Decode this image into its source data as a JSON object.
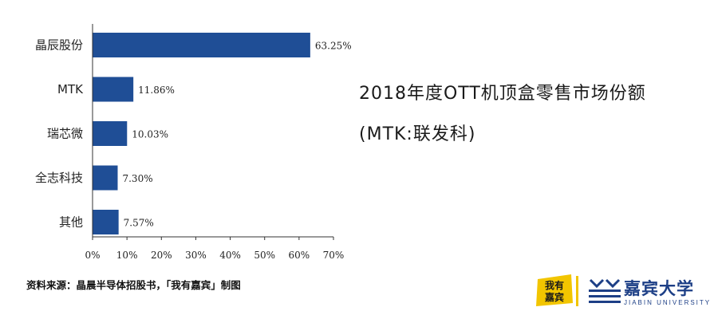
{
  "chart_data": {
    "type": "bar",
    "orientation": "horizontal",
    "title": "2018年度OTT机顶盒零售市场份额",
    "subtitle": "(MTK:联发科)",
    "categories": [
      "晶辰股份",
      "MTK",
      "瑞芯微",
      "全志科技",
      "其他"
    ],
    "values": [
      63.25,
      11.86,
      10.03,
      7.3,
      7.57
    ],
    "value_labels": [
      "63.25%",
      "11.86%",
      "10.03%",
      "7.30%",
      "7.57%"
    ],
    "xlim": [
      0,
      70
    ],
    "xticks": [
      "0%",
      "10%",
      "20%",
      "30%",
      "40%",
      "50%",
      "60%",
      "70%"
    ],
    "grid": false,
    "bar_color": "#1f4e96"
  },
  "source": "资料来源：晶晨半导体招股书，「我有嘉宾」制图",
  "logo": {
    "badge_text": "我有嘉宾",
    "university_name": "嘉宾大学",
    "university_en": "JIABIN UNIVERSITY",
    "badge_color": "#f2c500",
    "brand_color": "#1d3f86"
  }
}
